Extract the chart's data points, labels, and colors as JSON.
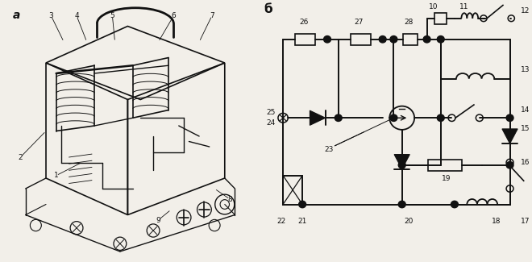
{
  "bg_color": "#f2efe9",
  "line_color": "#111111",
  "label_a": "a",
  "label_b": "б"
}
